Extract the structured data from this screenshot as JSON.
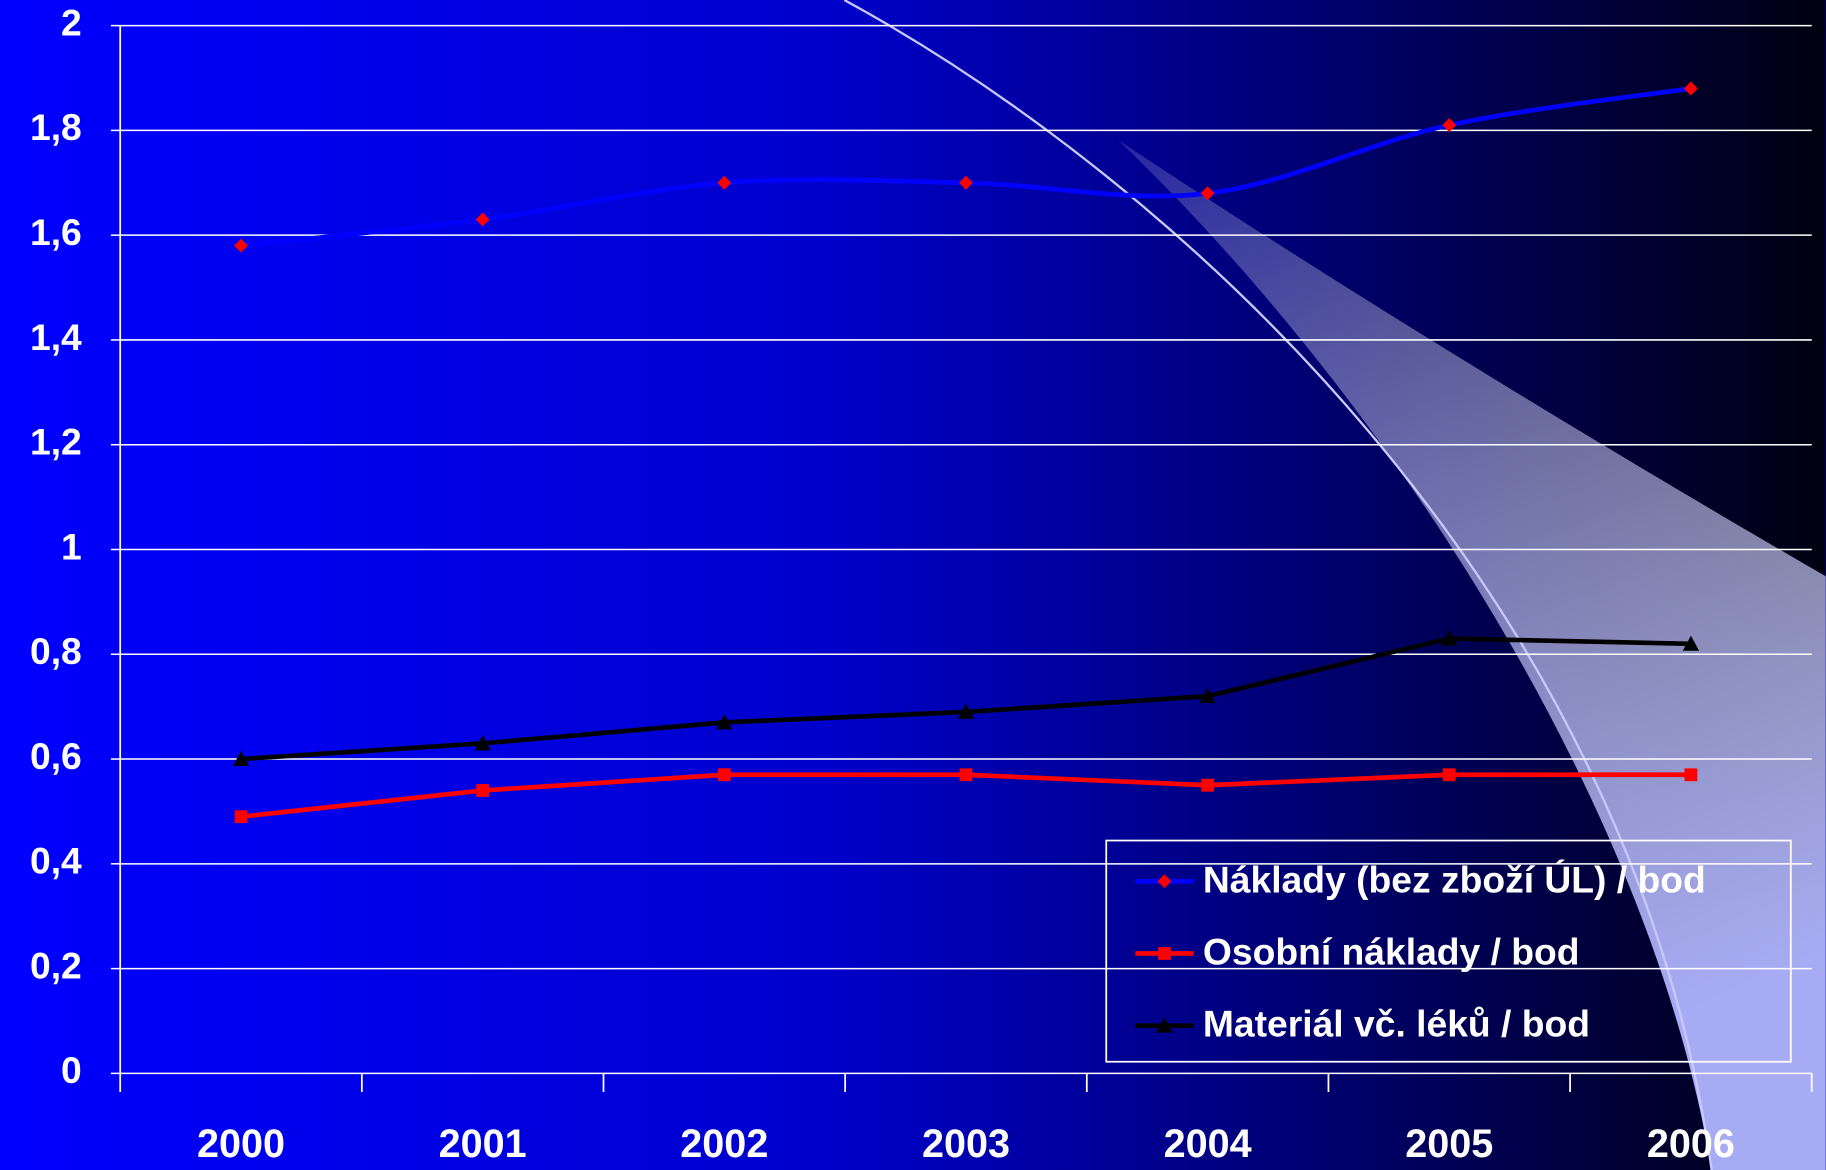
{
  "chart_data": {
    "type": "line",
    "categories": [
      "2000",
      "2001",
      "2002",
      "2003",
      "2004",
      "2005",
      "2006"
    ],
    "series": [
      {
        "name": "Náklady (bez zboží ÚL) / bod",
        "color": "#0000ff",
        "marker_color": "#ff0000",
        "marker": "diamond",
        "smooth": true,
        "values": [
          1.58,
          1.63,
          1.7,
          1.7,
          1.68,
          1.81,
          1.88
        ]
      },
      {
        "name": "Osobní náklady / bod",
        "color": "#ff0000",
        "marker_color": "#ff0000",
        "marker": "square",
        "smooth": false,
        "values": [
          0.49,
          0.54,
          0.57,
          0.57,
          0.55,
          0.57,
          0.57
        ]
      },
      {
        "name": "Materiál vč. léků / bod",
        "color": "#000000",
        "marker_color": "#000000",
        "marker": "triangle",
        "smooth": false,
        "values": [
          0.6,
          0.63,
          0.67,
          0.69,
          0.72,
          0.83,
          0.82
        ]
      }
    ],
    "ylim": [
      0,
      2
    ],
    "yticks": [
      0,
      {
        "value": 0.2,
        "label": "0,2"
      },
      {
        "value": 0.4,
        "label": "0,4"
      },
      {
        "value": 0.6,
        "label": "0,6"
      },
      {
        "value": 0.8,
        "label": "0,8"
      },
      1,
      {
        "value": 1.2,
        "label": "1,2"
      },
      {
        "value": 1.4,
        "label": "1,4"
      },
      {
        "value": 1.6,
        "label": "1,6"
      },
      {
        "value": 1.8,
        "label": "1,8"
      },
      2
    ],
    "grid": true,
    "legend": "lower right"
  }
}
